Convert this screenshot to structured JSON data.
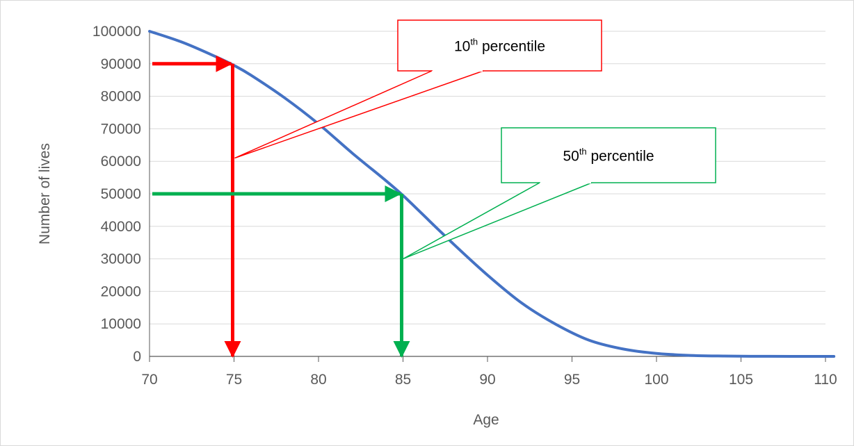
{
  "chart_data": {
    "type": "line",
    "title": "",
    "xlabel": "Age",
    "ylabel": "Number of lives",
    "xlim": [
      70,
      110
    ],
    "ylim": [
      0,
      100000
    ],
    "x_ticks": [
      "70",
      "75",
      "80",
      "85",
      "90",
      "95",
      "100",
      "105",
      "110"
    ],
    "y_ticks": [
      "0",
      "10000",
      "20000",
      "30000",
      "40000",
      "50000",
      "60000",
      "70000",
      "80000",
      "90000",
      "100000"
    ],
    "grid": "horizontal",
    "series": [
      {
        "color": "#4472c4",
        "x": [
          70,
          72,
          74,
          75,
          76,
          78,
          80,
          82,
          84,
          85,
          86,
          88,
          90,
          92,
          94,
          96,
          98,
          100,
          102,
          104,
          106,
          108,
          110.5
        ],
        "y": [
          100000,
          96500,
          92000,
          89500,
          86500,
          79500,
          71500,
          62500,
          54000,
          49500,
          44500,
          34500,
          25000,
          16500,
          10000,
          5000,
          2300,
          900,
          300,
          100,
          30,
          10,
          0
        ]
      }
    ],
    "annotations": [
      {
        "base": "10",
        "sup": "th",
        "label": " percentile",
        "color": "#ff0000",
        "percentile_level": 90000,
        "age": 75
      },
      {
        "base": "50",
        "sup": "th",
        "label": " percentile",
        "color": "#00b050",
        "percentile_level": 50000,
        "age": 85
      }
    ]
  }
}
